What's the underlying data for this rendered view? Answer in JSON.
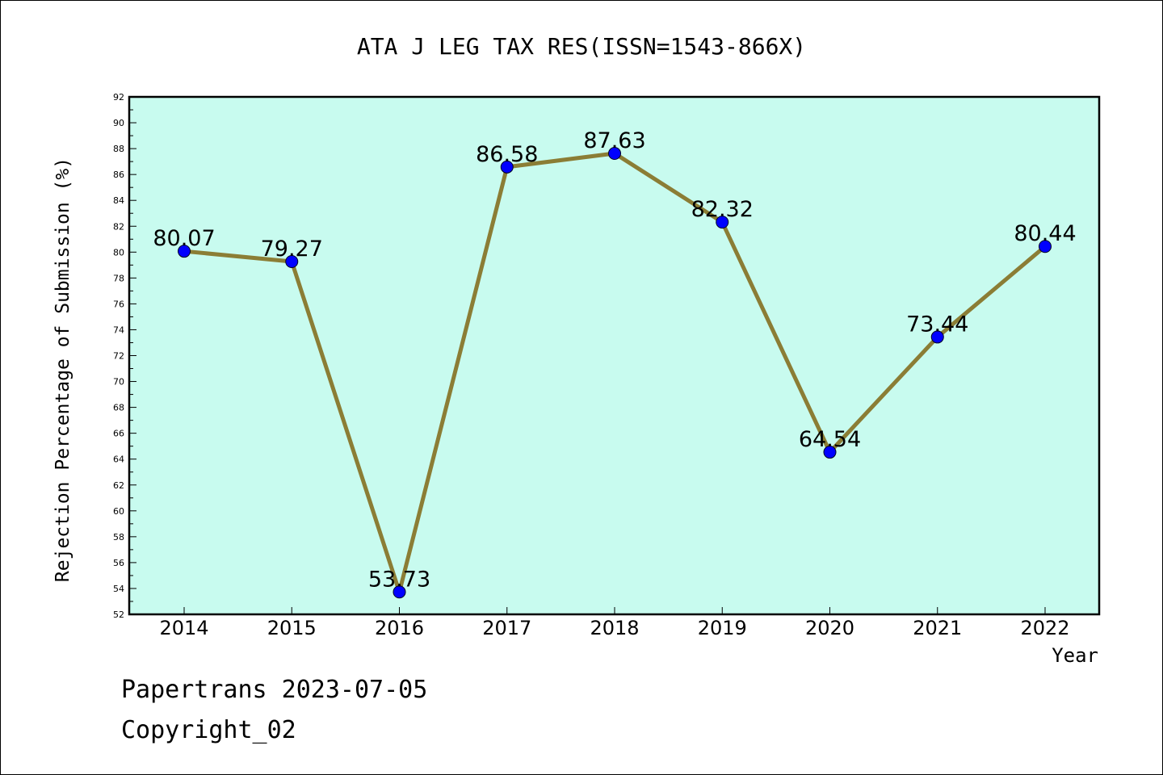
{
  "chart_data": {
    "type": "line",
    "title": "ATA J LEG TAX RES(ISSN=1543-866X)",
    "xlabel": "Year",
    "ylabel": "Rejection Percentage of Submission (%)",
    "categories": [
      "2014",
      "2015",
      "2016",
      "2017",
      "2018",
      "2019",
      "2020",
      "2021",
      "2022"
    ],
    "series": [
      {
        "values": [
          80.07,
          79.27,
          53.73,
          86.58,
          87.63,
          82.32,
          64.54,
          73.44,
          80.44
        ],
        "labels": [
          "80.07",
          "79.27",
          "53.73",
          "86.58",
          "87.63",
          "82.32",
          "64.54",
          "73.44",
          "80.44"
        ],
        "line_color": "#8b7d35",
        "marker_color": "#0000ff"
      }
    ],
    "ylim": [
      52,
      92
    ],
    "y_ticks": [
      "52",
      "54",
      "56",
      "58",
      "60",
      "62",
      "64",
      "66",
      "68",
      "70",
      "72",
      "74",
      "76",
      "78",
      "80",
      "82",
      "84",
      "86",
      "88",
      "90",
      "92"
    ],
    "plot_background": "#c8fbef",
    "grid": false
  },
  "footer": {
    "line1": "Papertrans 2023-07-05",
    "line2": "Copyright_02"
  }
}
